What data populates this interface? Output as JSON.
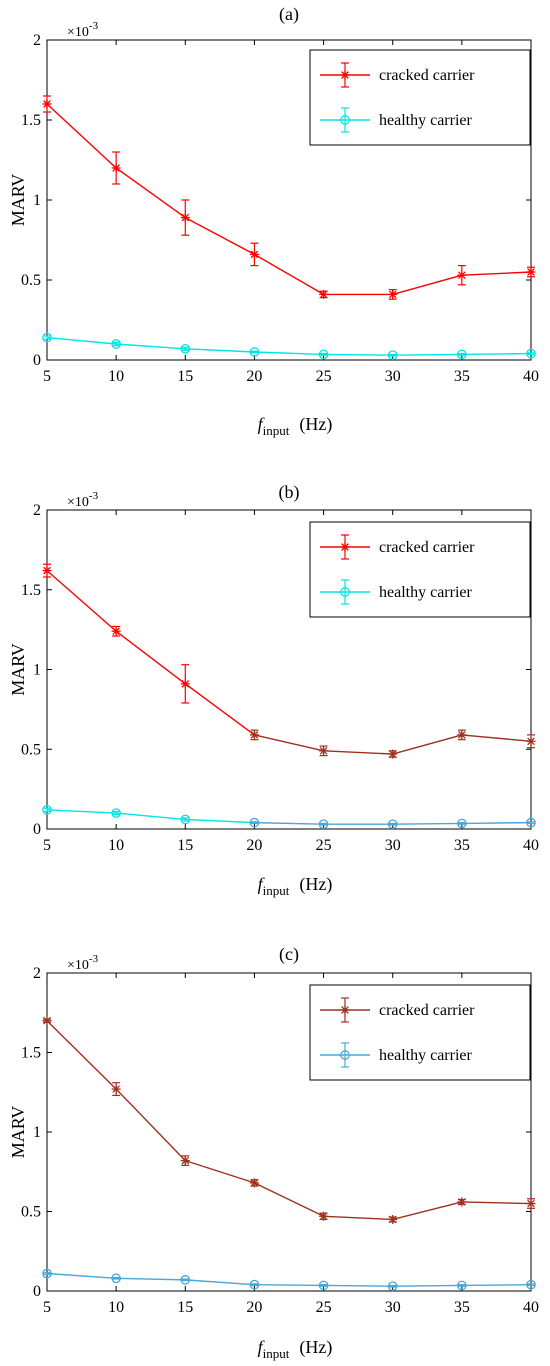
{
  "chart_data": [
    {
      "type": "line",
      "title": "(a)",
      "xlabel_main": "f",
      "xlabel_sub": "input",
      "xlabel_unit": "(Hz)",
      "ylabel": "MARV",
      "y_exponent_base": "×10",
      "y_exponent_power": "-3",
      "xlim": [
        5,
        40
      ],
      "ylim": [
        0,
        2
      ],
      "x_ticks": [
        "5",
        "10",
        "15",
        "20",
        "25",
        "30",
        "35",
        "40"
      ],
      "y_ticks": [
        "0",
        "0.5",
        "1",
        "1.5",
        "2"
      ],
      "legend_position": "top-right",
      "x": [
        5,
        10,
        15,
        20,
        25,
        30,
        35,
        40
      ],
      "series": [
        {
          "name": "cracked carrier",
          "color": "#ff0000",
          "marker": "star",
          "values": [
            1.6,
            1.2,
            0.89,
            0.66,
            0.41,
            0.41,
            0.53,
            0.55
          ],
          "errors": [
            0.05,
            0.1,
            0.11,
            0.07,
            0.02,
            0.03,
            0.06,
            0.03
          ]
        },
        {
          "name": "healthy carrier",
          "color": "#00e5e5",
          "marker": "circle",
          "values": [
            0.14,
            0.1,
            0.07,
            0.05,
            0.035,
            0.03,
            0.035,
            0.04
          ],
          "errors": [
            0.01,
            0.01,
            0.01,
            0.005,
            0.005,
            0.005,
            0.005,
            0.005
          ]
        }
      ]
    },
    {
      "type": "line",
      "title": "(b)",
      "xlabel_main": "f",
      "xlabel_sub": "input",
      "xlabel_unit": "(Hz)",
      "ylabel": "MARV",
      "y_exponent_base": "×10",
      "y_exponent_power": "-3",
      "xlim": [
        5,
        40
      ],
      "ylim": [
        0,
        2
      ],
      "x_ticks": [
        "5",
        "10",
        "15",
        "20",
        "25",
        "30",
        "35",
        "40"
      ],
      "y_ticks": [
        "0",
        "0.5",
        "1",
        "1.5",
        "2"
      ],
      "legend_position": "top-right",
      "x": [
        5,
        10,
        15,
        20,
        25,
        30,
        35,
        40
      ],
      "series": [
        {
          "name": "cracked carrier",
          "color": "#ff0000",
          "late_color": "#a0301e",
          "marker": "star",
          "values": [
            1.62,
            1.24,
            0.91,
            0.59,
            0.49,
            0.47,
            0.59,
            0.55
          ],
          "errors": [
            0.04,
            0.03,
            0.12,
            0.03,
            0.03,
            0.02,
            0.03,
            0.04
          ]
        },
        {
          "name": "healthy carrier",
          "color": "#00e5e5",
          "late_color": "#4aa8d8",
          "marker": "circle",
          "values": [
            0.12,
            0.1,
            0.06,
            0.04,
            0.03,
            0.03,
            0.035,
            0.04
          ],
          "errors": [
            0.01,
            0.01,
            0.01,
            0.005,
            0.005,
            0.005,
            0.005,
            0.005
          ]
        }
      ]
    },
    {
      "type": "line",
      "title": "(c)",
      "xlabel_main": "f",
      "xlabel_sub": "input",
      "xlabel_unit": "(Hz)",
      "ylabel": "MARV",
      "y_exponent_base": "×10",
      "y_exponent_power": "-3",
      "xlim": [
        5,
        40
      ],
      "ylim": [
        0,
        2
      ],
      "x_ticks": [
        "5",
        "10",
        "15",
        "20",
        "25",
        "30",
        "35",
        "40"
      ],
      "y_ticks": [
        "0",
        "0.5",
        "1",
        "1.5",
        "2"
      ],
      "legend_position": "top-right",
      "x": [
        5,
        10,
        15,
        20,
        25,
        30,
        35,
        40
      ],
      "series": [
        {
          "name": "cracked carrier",
          "color": "#a0301e",
          "marker": "star",
          "values": [
            1.7,
            1.27,
            0.82,
            0.68,
            0.47,
            0.45,
            0.56,
            0.55
          ],
          "errors": [
            0.01,
            0.04,
            0.03,
            0.02,
            0.02,
            0.015,
            0.015,
            0.03
          ]
        },
        {
          "name": "healthy carrier",
          "color": "#4aa8d8",
          "marker": "circle",
          "values": [
            0.11,
            0.08,
            0.07,
            0.04,
            0.035,
            0.03,
            0.035,
            0.04
          ],
          "errors": [
            0.005,
            0.005,
            0.005,
            0.005,
            0.005,
            0.005,
            0.005,
            0.005
          ]
        }
      ]
    }
  ]
}
